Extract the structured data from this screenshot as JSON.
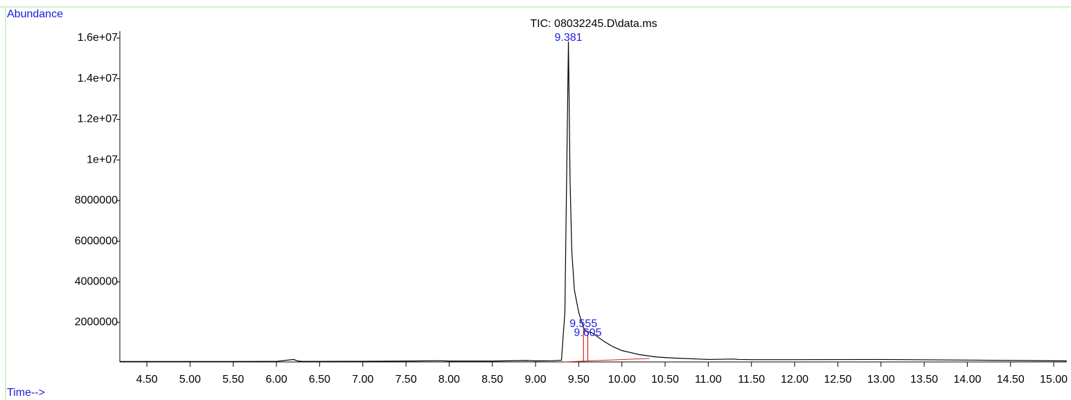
{
  "chart_data": {
    "type": "line",
    "title": "TIC: 08032245.D\\data.ms",
    "y_label": "Abundance",
    "x_label": "Time-->",
    "xlim": [
      4.187,
      15.152
    ],
    "ylim": [
      58000,
      16340000
    ],
    "xticks": [
      {
        "value": 4.5,
        "label": "4.50"
      },
      {
        "value": 5,
        "label": "5.00"
      },
      {
        "value": 5.5,
        "label": "5.50"
      },
      {
        "value": 6,
        "label": "6.00"
      },
      {
        "value": 6.5,
        "label": "6.50"
      },
      {
        "value": 7,
        "label": "7.00"
      },
      {
        "value": 7.5,
        "label": "7.50"
      },
      {
        "value": 8,
        "label": "8.00"
      },
      {
        "value": 8.5,
        "label": "8.50"
      },
      {
        "value": 9,
        "label": "9.00"
      },
      {
        "value": 9.5,
        "label": "9.50"
      },
      {
        "value": 10,
        "label": "10.00"
      },
      {
        "value": 10.5,
        "label": "10.50"
      },
      {
        "value": 11,
        "label": "11.00"
      },
      {
        "value": 11.5,
        "label": "11.50"
      },
      {
        "value": 12,
        "label": "12.00"
      },
      {
        "value": 12.5,
        "label": "12.50"
      },
      {
        "value": 13,
        "label": "13.00"
      },
      {
        "value": 13.5,
        "label": "13.50"
      },
      {
        "value": 14,
        "label": "14.00"
      },
      {
        "value": 14.5,
        "label": "14.50"
      },
      {
        "value": 15,
        "label": "15.00"
      }
    ],
    "yticks": [
      2000000,
      4000000,
      6000000,
      8000000,
      {
        "value": 10000000,
        "label": "1e+07"
      },
      {
        "value": 12000000,
        "label": "1.2e+07"
      },
      {
        "value": 14000000,
        "label": "1.4e+07"
      },
      {
        "value": 16000000,
        "label": "1.6e+07"
      }
    ],
    "series": [
      {
        "color": "#000000",
        "x": [
          4.19,
          4.5,
          5,
          5.5,
          6.0,
          6.2,
          6.25,
          6.3,
          7.0,
          7.5,
          7.9,
          8.0,
          8.5,
          8.9,
          9.0,
          9.2,
          9.3,
          9.34,
          9.36,
          9.381,
          9.4,
          9.42,
          9.45,
          9.5,
          9.555,
          9.58,
          9.605,
          9.65,
          9.7,
          9.8,
          9.9,
          10.0,
          10.2,
          10.4,
          10.6,
          11.0,
          11.3,
          11.35,
          11.5,
          12.0,
          13.0,
          14.0,
          15.15
        ],
        "values": [
          80000,
          80000,
          80000,
          80000,
          85000,
          180000,
          100000,
          85000,
          90000,
          100000,
          120000,
          100000,
          100000,
          130000,
          110000,
          120000,
          140000,
          2500000,
          9000000,
          15830000,
          9000000,
          5500000,
          3600000,
          2500000,
          1750000,
          1600000,
          1550000,
          1500000,
          1350000,
          1050000,
          800000,
          620000,
          420000,
          300000,
          250000,
          180000,
          200000,
          180000,
          170000,
          170000,
          180000,
          150000,
          110000
        ]
      }
    ],
    "peaks": [
      9.381,
      9.555,
      9.605
    ],
    "peak_heights": [
      15830000,
      1750000,
      1550000
    ],
    "peak_label_color": "#1a1adf",
    "integration_color": "#cc2222",
    "integration_baseline": {
      "x": [
        9.33,
        10.32
      ],
      "values": [
        60000,
        230000
      ]
    }
  }
}
